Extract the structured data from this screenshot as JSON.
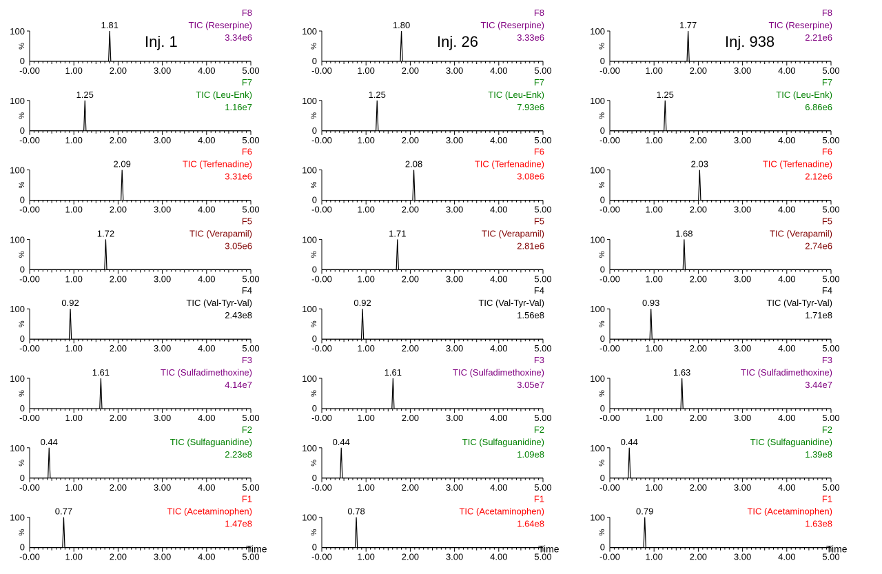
{
  "chart_data": {
    "type": "line",
    "description_axes": {
      "xlabel": "Time",
      "ylabel": "%",
      "xlim": [
        -0.0,
        5.0
      ],
      "ylim": [
        0,
        100
      ]
    },
    "x_ticks": [
      "-0.00",
      "1.00",
      "2.00",
      "3.00",
      "4.00",
      "5.00"
    ],
    "y_ticks": [
      "0",
      "100"
    ],
    "time_label": "Time",
    "columns": [
      {
        "injection": "Inj. 1",
        "traces": [
          {
            "function": "F8",
            "compound": "TIC (Reserpine)",
            "intensity": "3.34e6",
            "color": "#800080",
            "peak_time": 1.81,
            "peak_label": "1.81"
          },
          {
            "function": "F7",
            "compound": "TIC (Leu-Enk)",
            "intensity": "1.16e7",
            "color": "#008000",
            "peak_time": 1.25,
            "peak_label": "1.25"
          },
          {
            "function": "F6",
            "compound": "TIC (Terfenadine)",
            "intensity": "3.31e6",
            "color": "#ff0000",
            "peak_time": 2.09,
            "peak_label": "2.09"
          },
          {
            "function": "F5",
            "compound": "TIC (Verapamil)",
            "intensity": "3.05e6",
            "color": "#800000",
            "peak_time": 1.72,
            "peak_label": "1.72"
          },
          {
            "function": "F4",
            "compound": "TIC (Val-Tyr-Val)",
            "intensity": "2.43e8",
            "color": "#000000",
            "peak_time": 0.92,
            "peak_label": "0.92"
          },
          {
            "function": "F3",
            "compound": "TIC (Sulfadimethoxine)",
            "intensity": "4.14e7",
            "color": "#800080",
            "peak_time": 1.61,
            "peak_label": "1.61"
          },
          {
            "function": "F2",
            "compound": "TIC (Sulfaguanidine)",
            "intensity": "2.23e8",
            "color": "#008000",
            "peak_time": 0.44,
            "peak_label": "0.44"
          },
          {
            "function": "F1",
            "compound": "TIC (Acetaminophen)",
            "intensity": "1.47e8",
            "color": "#ff0000",
            "peak_time": 0.77,
            "peak_label": "0.77"
          }
        ]
      },
      {
        "injection": "Inj. 26",
        "traces": [
          {
            "function": "F8",
            "compound": "TIC (Reserpine)",
            "intensity": "3.33e6",
            "color": "#800080",
            "peak_time": 1.8,
            "peak_label": "1.80"
          },
          {
            "function": "F7",
            "compound": "TIC (Leu-Enk)",
            "intensity": "7.93e6",
            "color": "#008000",
            "peak_time": 1.25,
            "peak_label": "1.25"
          },
          {
            "function": "F6",
            "compound": "TIC (Terfenadine)",
            "intensity": "3.08e6",
            "color": "#ff0000",
            "peak_time": 2.08,
            "peak_label": "2.08"
          },
          {
            "function": "F5",
            "compound": "TIC (Verapamil)",
            "intensity": "2.81e6",
            "color": "#800000",
            "peak_time": 1.71,
            "peak_label": "1.71"
          },
          {
            "function": "F4",
            "compound": "TIC (Val-Tyr-Val)",
            "intensity": "1.56e8",
            "color": "#000000",
            "peak_time": 0.92,
            "peak_label": "0.92"
          },
          {
            "function": "F3",
            "compound": "TIC (Sulfadimethoxine)",
            "intensity": "3.05e7",
            "color": "#800080",
            "peak_time": 1.61,
            "peak_label": "1.61"
          },
          {
            "function": "F2",
            "compound": "TIC (Sulfaguanidine)",
            "intensity": "1.09e8",
            "color": "#008000",
            "peak_time": 0.44,
            "peak_label": "0.44"
          },
          {
            "function": "F1",
            "compound": "TIC (Acetaminophen)",
            "intensity": "1.64e8",
            "color": "#ff0000",
            "peak_time": 0.78,
            "peak_label": "0.78"
          }
        ]
      },
      {
        "injection": "Inj. 938",
        "traces": [
          {
            "function": "F8",
            "compound": "TIC (Reserpine)",
            "intensity": "2.21e6",
            "color": "#800080",
            "peak_time": 1.77,
            "peak_label": "1.77"
          },
          {
            "function": "F7",
            "compound": "TIC (Leu-Enk)",
            "intensity": "6.86e6",
            "color": "#008000",
            "peak_time": 1.25,
            "peak_label": "1.25"
          },
          {
            "function": "F6",
            "compound": "TIC (Terfenadine)",
            "intensity": "2.12e6",
            "color": "#ff0000",
            "peak_time": 2.03,
            "peak_label": "2.03"
          },
          {
            "function": "F5",
            "compound": "TIC (Verapamil)",
            "intensity": "2.74e6",
            "color": "#800000",
            "peak_time": 1.68,
            "peak_label": "1.68"
          },
          {
            "function": "F4",
            "compound": "TIC (Val-Tyr-Val)",
            "intensity": "1.71e8",
            "color": "#000000",
            "peak_time": 0.93,
            "peak_label": "0.93"
          },
          {
            "function": "F3",
            "compound": "TIC (Sulfadimethoxine)",
            "intensity": "3.44e7",
            "color": "#800080",
            "peak_time": 1.63,
            "peak_label": "1.63"
          },
          {
            "function": "F2",
            "compound": "TIC (Sulfaguanidine)",
            "intensity": "1.39e8",
            "color": "#008000",
            "peak_time": 0.44,
            "peak_label": "0.44"
          },
          {
            "function": "F1",
            "compound": "TIC (Acetaminophen)",
            "intensity": "1.63e8",
            "color": "#ff0000",
            "peak_time": 0.79,
            "peak_label": "0.79"
          }
        ]
      }
    ]
  }
}
